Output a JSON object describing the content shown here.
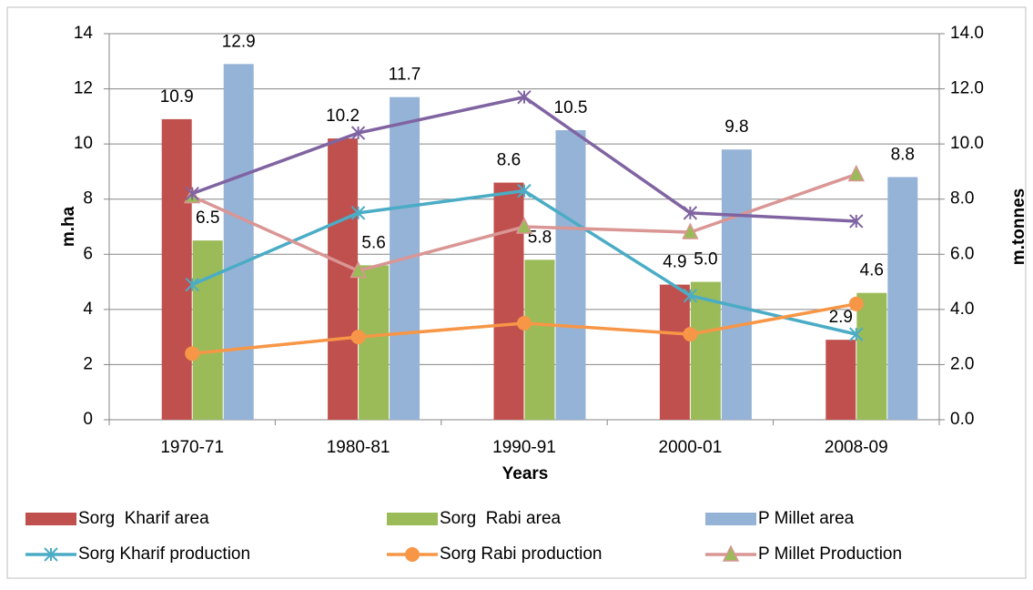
{
  "chart_data": {
    "type": "bar-line",
    "categories": [
      "1970-71",
      "1980-81",
      "1990-91",
      "2000-01",
      "2008-09"
    ],
    "x_label": "Years",
    "y_label": "m.ha",
    "y2_label": "m.tonnes",
    "ylim": [
      0,
      14
    ],
    "yticks": [
      0,
      2,
      4,
      6,
      8,
      10,
      12,
      14
    ],
    "y2lim": [
      0,
      14
    ],
    "y2ticks": [
      {
        "value": 0,
        "label": "0.0"
      },
      {
        "value": 2,
        "label": "2.0"
      },
      {
        "value": 4,
        "label": "4.0"
      },
      {
        "value": 6,
        "label": "6.0"
      },
      {
        "value": 8,
        "label": "8.0"
      },
      {
        "value": 10,
        "label": "10.0"
      },
      {
        "value": 12,
        "label": "12.0"
      },
      {
        "value": 14,
        "label": "14.0"
      }
    ],
    "grid": true,
    "series": [
      {
        "name": "Sorg  Kharif area",
        "kind": "bar",
        "color": "#c0504d",
        "values": [
          10.9,
          10.2,
          8.6,
          4.9,
          2.9
        ],
        "value_labels": [
          "10.9",
          "10.2",
          "8.6",
          "4.9",
          "2.9"
        ]
      },
      {
        "name": "Sorg  Rabi area",
        "kind": "bar",
        "color": "#9bbb59",
        "values": [
          6.5,
          5.6,
          5.8,
          5.0,
          4.6
        ],
        "value_labels": [
          "6.5",
          "5.6",
          "5.8",
          "5.0",
          "4.6"
        ]
      },
      {
        "name": "P Millet area",
        "kind": "bar",
        "color": "#95b3d7",
        "values": [
          12.9,
          11.7,
          10.5,
          9.8,
          8.8
        ],
        "value_labels": [
          "12.9",
          "11.7",
          "10.5",
          "9.8",
          "8.8"
        ]
      },
      {
        "name": "Sorg Kharif production",
        "kind": "line",
        "marker": "star",
        "axis": "y2",
        "color": "#4bacc6",
        "values": [
          4.9,
          7.5,
          8.3,
          4.5,
          3.1
        ]
      },
      {
        "name": "Sorg Rabi production",
        "kind": "line",
        "marker": "circle",
        "axis": "y2",
        "color": "#f79646",
        "values": [
          2.4,
          3.0,
          3.5,
          3.1,
          4.2
        ]
      },
      {
        "name": "P Millet Production",
        "kind": "line",
        "marker": "triangle",
        "axis": "y2",
        "color": "#d99694",
        "values": [
          8.1,
          5.4,
          7.0,
          6.8,
          8.9
        ]
      },
      {
        "kind": "line",
        "marker": "star",
        "axis": "y2",
        "color": "#8064a2",
        "values": [
          8.2,
          10.4,
          11.7,
          7.5,
          7.2
        ]
      }
    ]
  }
}
